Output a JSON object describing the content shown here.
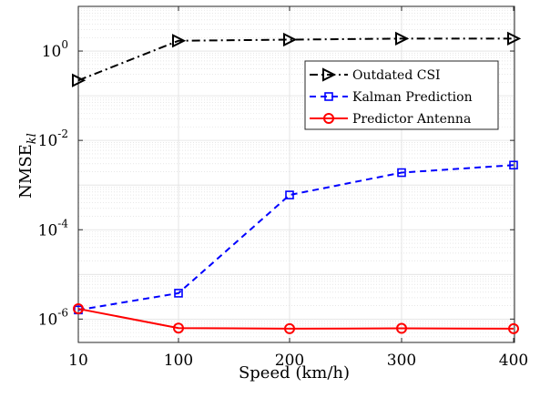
{
  "chart_data": {
    "type": "line",
    "x_ticks": [
      "10",
      "100",
      "200",
      "300",
      "400"
    ],
    "x": [
      10,
      100,
      200,
      300,
      400
    ],
    "xlabel": "Speed (km/h)",
    "ylabel_main": "NMSE",
    "ylabel_sub": "kl",
    "yscale": "log",
    "ylim": [
      3e-07,
      10
    ],
    "y_ticks": [
      {
        "base": "10",
        "exp": "0",
        "value": 1
      },
      {
        "base": "10",
        "exp": "-2",
        "value": 0.01
      },
      {
        "base": "10",
        "exp": "-4",
        "value": 0.0001
      },
      {
        "base": "10",
        "exp": "-6",
        "value": 1e-06
      }
    ],
    "grid": true,
    "legend_position": "top-right",
    "series": [
      {
        "name": "Outdated CSI",
        "color": "#000000",
        "dash": "dash-dot",
        "marker": "triangle-right",
        "values": [
          0.22,
          1.7,
          1.8,
          1.9,
          1.9
        ]
      },
      {
        "name": "Kalman Prediction",
        "color": "#0000ff",
        "dash": "dash",
        "marker": "square",
        "values": [
          1.6e-06,
          3.8e-06,
          0.0006,
          0.0019,
          0.0028
        ]
      },
      {
        "name": "Predictor Antenna",
        "color": "#ff0000",
        "dash": "solid",
        "marker": "circle",
        "values": [
          1.7e-06,
          6.3e-07,
          6.1e-07,
          6.2e-07,
          6.1e-07
        ]
      }
    ]
  }
}
